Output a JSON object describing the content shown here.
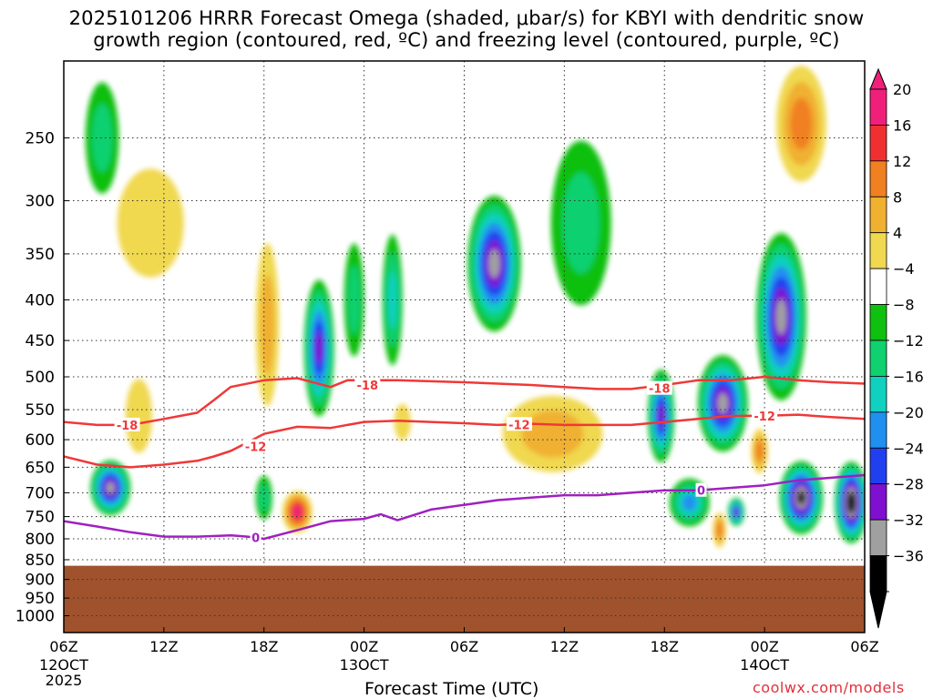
{
  "title_line1": "2025101206 HRRR Forecast Omega (shaded, μbar/s) for KBYI with dendritic snow",
  "title_line2": "growth region (contoured, red, ºC) and freezing level (contoured, purple, ºC)",
  "xaxis_title": "Forecast Time (UTC)",
  "credit": "coolwx.com/models",
  "chart_data": {
    "type": "heatmap",
    "y_axis": {
      "scale": "log-pressure",
      "direction": "inverted",
      "range_mb": [
        1050,
        200
      ],
      "ticks": [
        "250",
        "300",
        "350",
        "400",
        "450",
        "500",
        "550",
        "600",
        "650",
        "700",
        "750",
        "800",
        "850",
        "900",
        "950",
        "1000"
      ]
    },
    "x_axis": {
      "range_hours": [
        0,
        48
      ],
      "ticks": [
        {
          "hour": 0,
          "label": "06Z",
          "sub": [
            "12OCT",
            "2025"
          ]
        },
        {
          "hour": 6,
          "label": "12Z",
          "sub": []
        },
        {
          "hour": 12,
          "label": "18Z",
          "sub": []
        },
        {
          "hour": 18,
          "label": "00Z",
          "sub": [
            "13OCT"
          ]
        },
        {
          "hour": 24,
          "label": "06Z",
          "sub": []
        },
        {
          "hour": 30,
          "label": "12Z",
          "sub": []
        },
        {
          "hour": 36,
          "label": "18Z",
          "sub": []
        },
        {
          "hour": 42,
          "label": "00Z",
          "sub": [
            "14OCT"
          ]
        },
        {
          "hour": 48,
          "label": "06Z",
          "sub": []
        }
      ]
    },
    "grid": true,
    "ground_level_mb": 865,
    "ground_color": "#a0522d",
    "colorbar": {
      "labels": [
        "20",
        "16",
        "12",
        "8",
        "4",
        "−4",
        "−8",
        "−12",
        "−16",
        "−20",
        "−24",
        "−28",
        "−32",
        "−36"
      ],
      "colors": [
        "#f0207a",
        "#f03030",
        "#f08020",
        "#f0b030",
        "#f0d850",
        "#ffffff",
        "#10c010",
        "#10d070",
        "#10d0c0",
        "#2090f0",
        "#2040f0",
        "#8010d0",
        "#a0a0a0",
        "#000000"
      ]
    },
    "omega_features": [
      {
        "hour": 2.8,
        "mb": 690,
        "h_width": 1.2,
        "mb_span": 110,
        "value": -30
      },
      {
        "hour": 2.3,
        "mb": 250,
        "h_width": 1.0,
        "mb_span": 80,
        "value": -9
      },
      {
        "hour": 4.5,
        "mb": 560,
        "h_width": 0.8,
        "mb_span": 120,
        "value": 7
      },
      {
        "hour": 5.2,
        "mb": 320,
        "h_width": 2.0,
        "mb_span": 100,
        "value": 5
      },
      {
        "hour": 12.2,
        "mb": 430,
        "h_width": 0.7,
        "mb_span": 200,
        "value": 9
      },
      {
        "hour": 12.0,
        "mb": 710,
        "h_width": 0.5,
        "mb_span": 90,
        "value": -9
      },
      {
        "hour": 14.0,
        "mb": 740,
        "h_width": 0.9,
        "mb_span": 90,
        "value": 20
      },
      {
        "hour": 15.3,
        "mb": 460,
        "h_width": 0.9,
        "mb_span": 180,
        "value": -27
      },
      {
        "hour": 17.4,
        "mb": 400,
        "h_width": 0.6,
        "mb_span": 130,
        "value": -9
      },
      {
        "hour": 19.7,
        "mb": 400,
        "h_width": 0.6,
        "mb_span": 150,
        "value": -14
      },
      {
        "hour": 20.3,
        "mb": 570,
        "h_width": 0.5,
        "mb_span": 60,
        "value": 6
      },
      {
        "hour": 25.8,
        "mb": 360,
        "h_width": 1.6,
        "mb_span": 140,
        "value": -28
      },
      {
        "hour": 29.3,
        "mb": 590,
        "h_width": 3.0,
        "mb_span": 130,
        "value": 9
      },
      {
        "hour": 31.0,
        "mb": 320,
        "h_width": 1.8,
        "mb_span": 150,
        "value": -9
      },
      {
        "hour": 35.8,
        "mb": 560,
        "h_width": 0.8,
        "mb_span": 150,
        "value": -24
      },
      {
        "hour": 37.5,
        "mb": 720,
        "h_width": 1.2,
        "mb_span": 100,
        "value": -19
      },
      {
        "hour": 39.3,
        "mb": 780,
        "h_width": 0.4,
        "mb_span": 80,
        "value": 14
      },
      {
        "hour": 39.5,
        "mb": 540,
        "h_width": 1.5,
        "mb_span": 150,
        "value": -29
      },
      {
        "hour": 40.3,
        "mb": 740,
        "h_width": 0.5,
        "mb_span": 60,
        "value": -27
      },
      {
        "hour": 41.7,
        "mb": 620,
        "h_width": 0.5,
        "mb_span": 80,
        "value": 13
      },
      {
        "hour": 43.0,
        "mb": 420,
        "h_width": 1.5,
        "mb_span": 200,
        "value": -30
      },
      {
        "hour": 44.2,
        "mb": 710,
        "h_width": 1.3,
        "mb_span": 150,
        "value": -34
      },
      {
        "hour": 47.2,
        "mb": 720,
        "h_width": 1.0,
        "mb_span": 170,
        "value": -36
      },
      {
        "hour": 44.2,
        "mb": 240,
        "h_width": 1.5,
        "mb_span": 80,
        "value": 14
      }
    ],
    "isotherms": [
      {
        "label": "-18",
        "color": "#f03838",
        "hours": [
          0,
          2,
          4,
          6,
          7,
          8,
          9,
          10,
          12,
          14,
          16,
          17,
          18,
          20,
          24,
          28,
          30,
          32,
          34,
          36,
          38,
          40,
          42,
          44,
          46,
          48
        ],
        "mb": [
          570,
          575,
          575,
          565,
          560,
          555,
          535,
          515,
          505,
          502,
          515,
          505,
          505,
          505,
          508,
          512,
          515,
          518,
          518,
          512,
          505,
          505,
          500,
          505,
          508,
          510
        ],
        "label_positions": [
          {
            "hour": 3.8,
            "mb": 575
          },
          {
            "hour": 18.2,
            "mb": 512
          },
          {
            "hour": 35.7,
            "mb": 517
          }
        ]
      },
      {
        "label": "-12",
        "color": "#f03838",
        "hours": [
          0,
          2,
          4,
          6,
          8,
          9,
          10,
          11,
          12,
          14,
          16,
          18,
          20,
          22,
          24,
          26,
          28,
          30,
          32,
          34,
          36,
          38,
          40,
          42,
          44,
          46,
          48
        ],
        "mb": [
          630,
          645,
          650,
          645,
          638,
          630,
          620,
          605,
          590,
          578,
          580,
          570,
          568,
          570,
          572,
          575,
          573,
          575,
          575,
          575,
          570,
          565,
          560,
          560,
          558,
          562,
          565
        ],
        "label_positions": [
          {
            "hour": 11.5,
            "mb": 612
          },
          {
            "hour": 27.3,
            "mb": 574
          },
          {
            "hour": 42.0,
            "mb": 560
          }
        ]
      },
      {
        "label": "0",
        "color": "#a020c0",
        "hours": [
          0,
          2,
          4,
          6,
          8,
          10,
          11,
          12,
          14,
          16,
          18,
          19,
          20,
          22,
          24,
          26,
          28,
          30,
          32,
          34,
          36,
          38,
          40,
          42,
          44,
          46,
          48
        ],
        "mb": [
          760,
          772,
          785,
          795,
          795,
          792,
          795,
          800,
          780,
          760,
          755,
          745,
          758,
          735,
          725,
          715,
          710,
          705,
          705,
          700,
          695,
          695,
          690,
          685,
          675,
          670,
          665
        ],
        "label_positions": [
          {
            "hour": 11.5,
            "mb": 797
          },
          {
            "hour": 38.2,
            "mb": 695
          }
        ]
      }
    ]
  }
}
